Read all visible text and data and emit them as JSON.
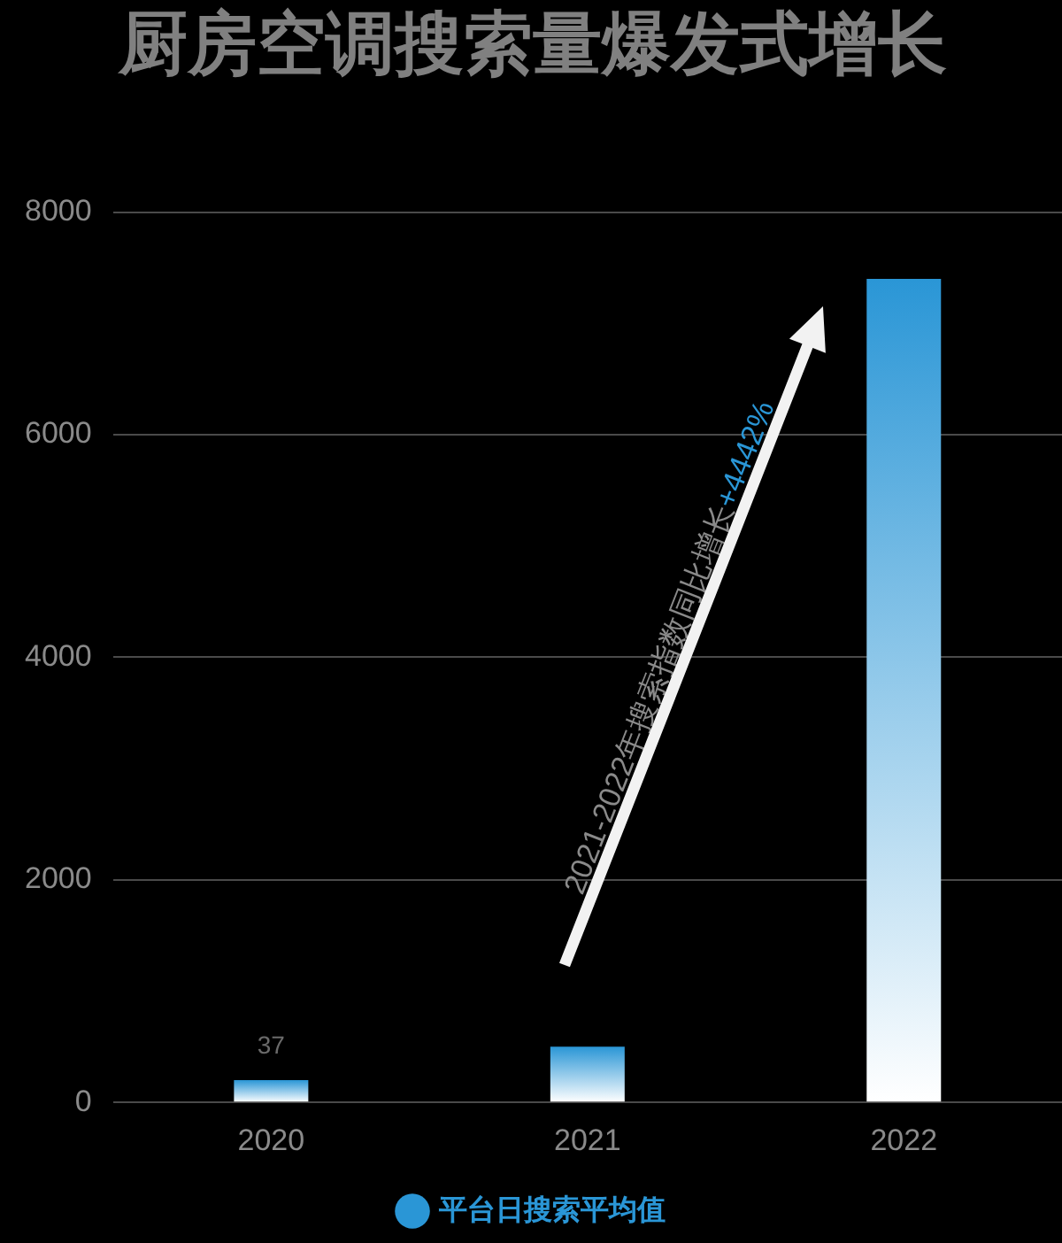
{
  "chart_data": {
    "type": "bar",
    "title": "厨房空调搜索量爆发式增长",
    "categories": [
      "2020",
      "2021",
      "2022"
    ],
    "series": [
      {
        "name": "平台日搜索平均值",
        "color": "#2a96d6",
        "values": [
          200,
          500,
          7400
        ]
      }
    ],
    "ylim": [
      0,
      8000
    ],
    "yticks": [
      0,
      2000,
      4000,
      6000,
      8000
    ],
    "grid": "y",
    "legend": "bottom",
    "annotations": [
      {
        "text": "37",
        "x": "2020",
        "y": 200
      },
      "2021-2022年搜索指数同比增长",
      "+4442%"
    ]
  }
}
